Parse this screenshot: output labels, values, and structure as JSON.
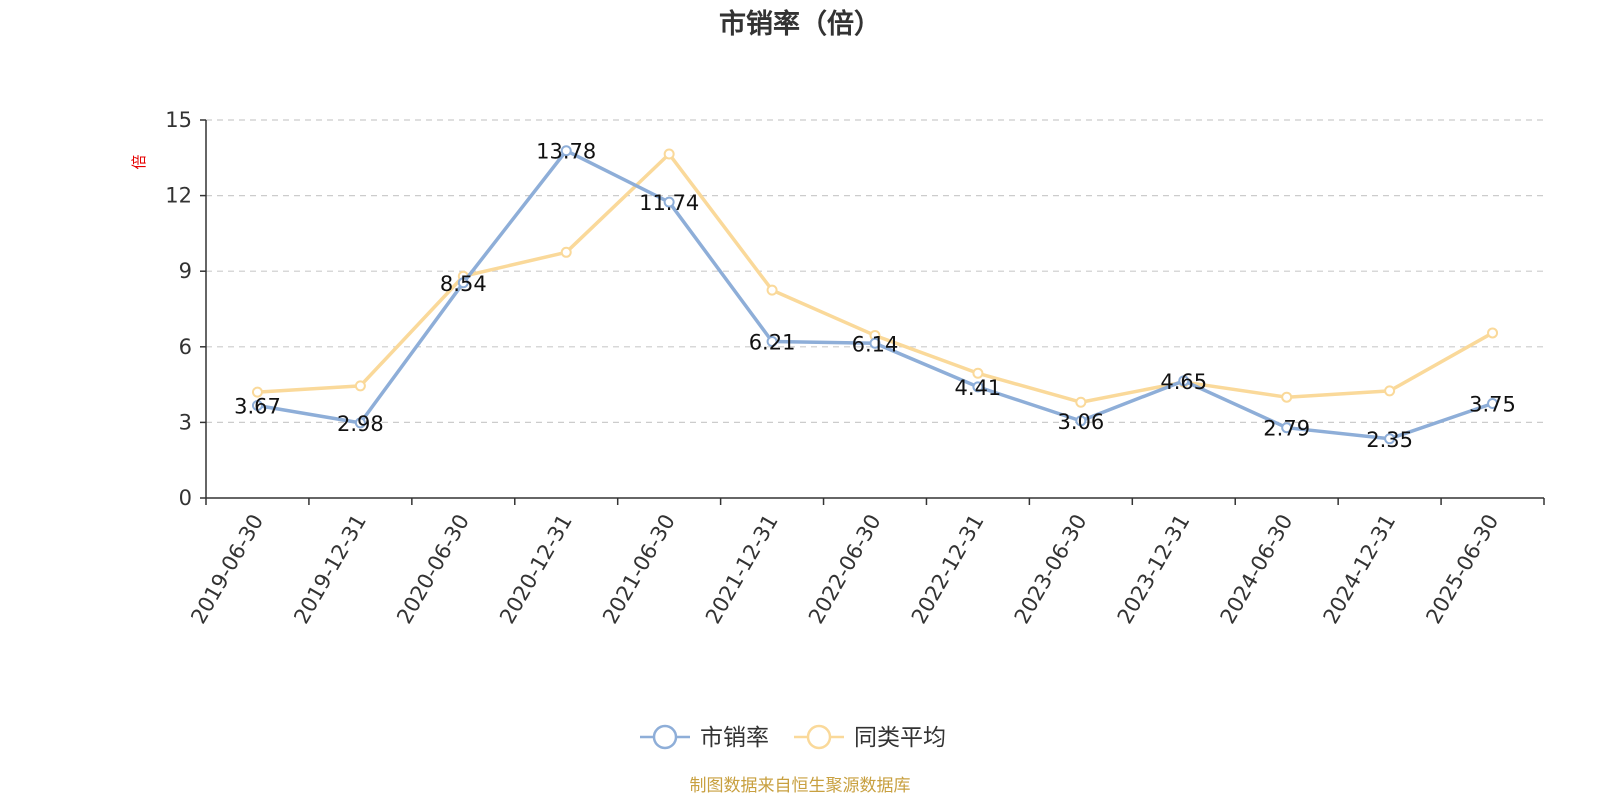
{
  "chart_data": {
    "type": "line",
    "title": "市销率（倍）",
    "ylabel": "倍",
    "xlabel": "",
    "categories": [
      "2019-06-30",
      "2019-12-31",
      "2020-06-30",
      "2020-12-31",
      "2021-06-30",
      "2021-12-31",
      "2022-06-30",
      "2022-12-31",
      "2023-06-30",
      "2023-12-31",
      "2024-06-30",
      "2024-12-31",
      "2025-06-30"
    ],
    "ylim": [
      0,
      15
    ],
    "yticks": [
      0,
      3,
      6,
      9,
      12,
      15
    ],
    "grid": true,
    "legend_position": "bottom",
    "series": [
      {
        "name": "市销率",
        "color": "#8eaed8",
        "values": [
          3.67,
          2.98,
          8.54,
          13.78,
          11.74,
          6.21,
          6.14,
          4.41,
          3.06,
          4.65,
          2.79,
          2.35,
          3.75
        ],
        "labels": [
          "3.67",
          "2.98",
          "8.54",
          "13.78",
          "11.74",
          "6.21",
          "6.14",
          "4.41",
          "3.06",
          "4.65",
          "2.79",
          "2.35",
          "3.75"
        ]
      },
      {
        "name": "同类平均",
        "color": "#fad99a",
        "values": [
          4.2,
          4.45,
          8.8,
          9.75,
          13.65,
          8.25,
          6.45,
          4.95,
          3.8,
          4.6,
          4.0,
          4.25,
          6.55
        ]
      }
    ]
  },
  "source_note": "制图数据来自恒生聚源数据库"
}
